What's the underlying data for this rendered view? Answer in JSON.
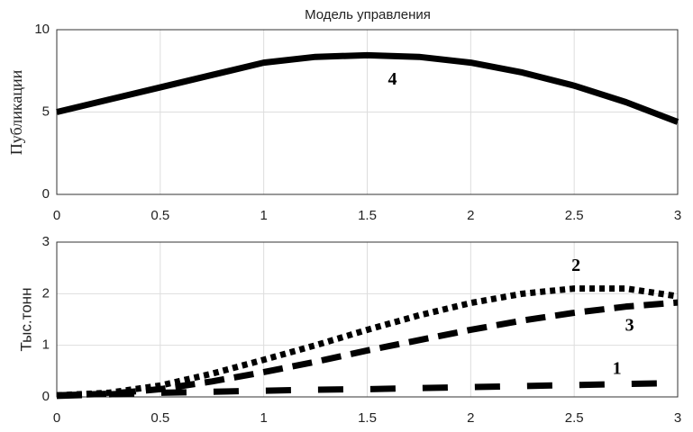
{
  "chart_data": [
    {
      "type": "line",
      "title": "Модель управления",
      "y_label": "Публикации",
      "x": [
        0,
        0.25,
        0.5,
        0.75,
        1,
        1.25,
        1.5,
        1.75,
        2,
        2.25,
        2.5,
        2.75,
        3
      ],
      "series": [
        {
          "name": "4",
          "color": "#000000",
          "linestyle": "solid",
          "values": [
            5,
            5.75,
            6.5,
            7.25,
            8.0,
            8.35,
            8.45,
            8.35,
            8.0,
            7.4,
            6.6,
            5.6,
            4.4
          ]
        }
      ],
      "xlim": [
        0,
        3
      ],
      "xticks": [
        0,
        0.5,
        1,
        1.5,
        2,
        2.5,
        3
      ],
      "ylim": [
        0,
        10
      ],
      "yticks": [
        0,
        5,
        10
      ],
      "grid": true
    },
    {
      "type": "line",
      "y_label": "Тыс.тонн",
      "x": [
        0,
        0.25,
        0.5,
        0.75,
        1,
        1.25,
        1.5,
        1.75,
        2,
        2.25,
        2.5,
        2.75,
        3
      ],
      "series": [
        {
          "name": "1",
          "color": "#000000",
          "linestyle": "loosely dashed",
          "values": [
            0.02,
            0.05,
            0.08,
            0.1,
            0.12,
            0.14,
            0.15,
            0.17,
            0.19,
            0.21,
            0.23,
            0.25,
            0.27
          ]
        },
        {
          "name": "2",
          "color": "#000000",
          "linestyle": "dotted",
          "values": [
            0.03,
            0.08,
            0.22,
            0.45,
            0.72,
            1.0,
            1.3,
            1.58,
            1.82,
            2.0,
            2.1,
            2.1,
            1.95
          ]
        },
        {
          "name": "3",
          "color": "#000000",
          "linestyle": "dashed",
          "values": [
            0.03,
            0.06,
            0.15,
            0.3,
            0.48,
            0.68,
            0.9,
            1.1,
            1.3,
            1.48,
            1.63,
            1.75,
            1.83
          ]
        }
      ],
      "xlim": [
        0,
        3
      ],
      "xticks": [
        0,
        0.5,
        1,
        1.5,
        2,
        2.5,
        3
      ],
      "ylim": [
        0,
        3
      ],
      "yticks": [
        0,
        1,
        2,
        3
      ],
      "grid": true
    }
  ]
}
